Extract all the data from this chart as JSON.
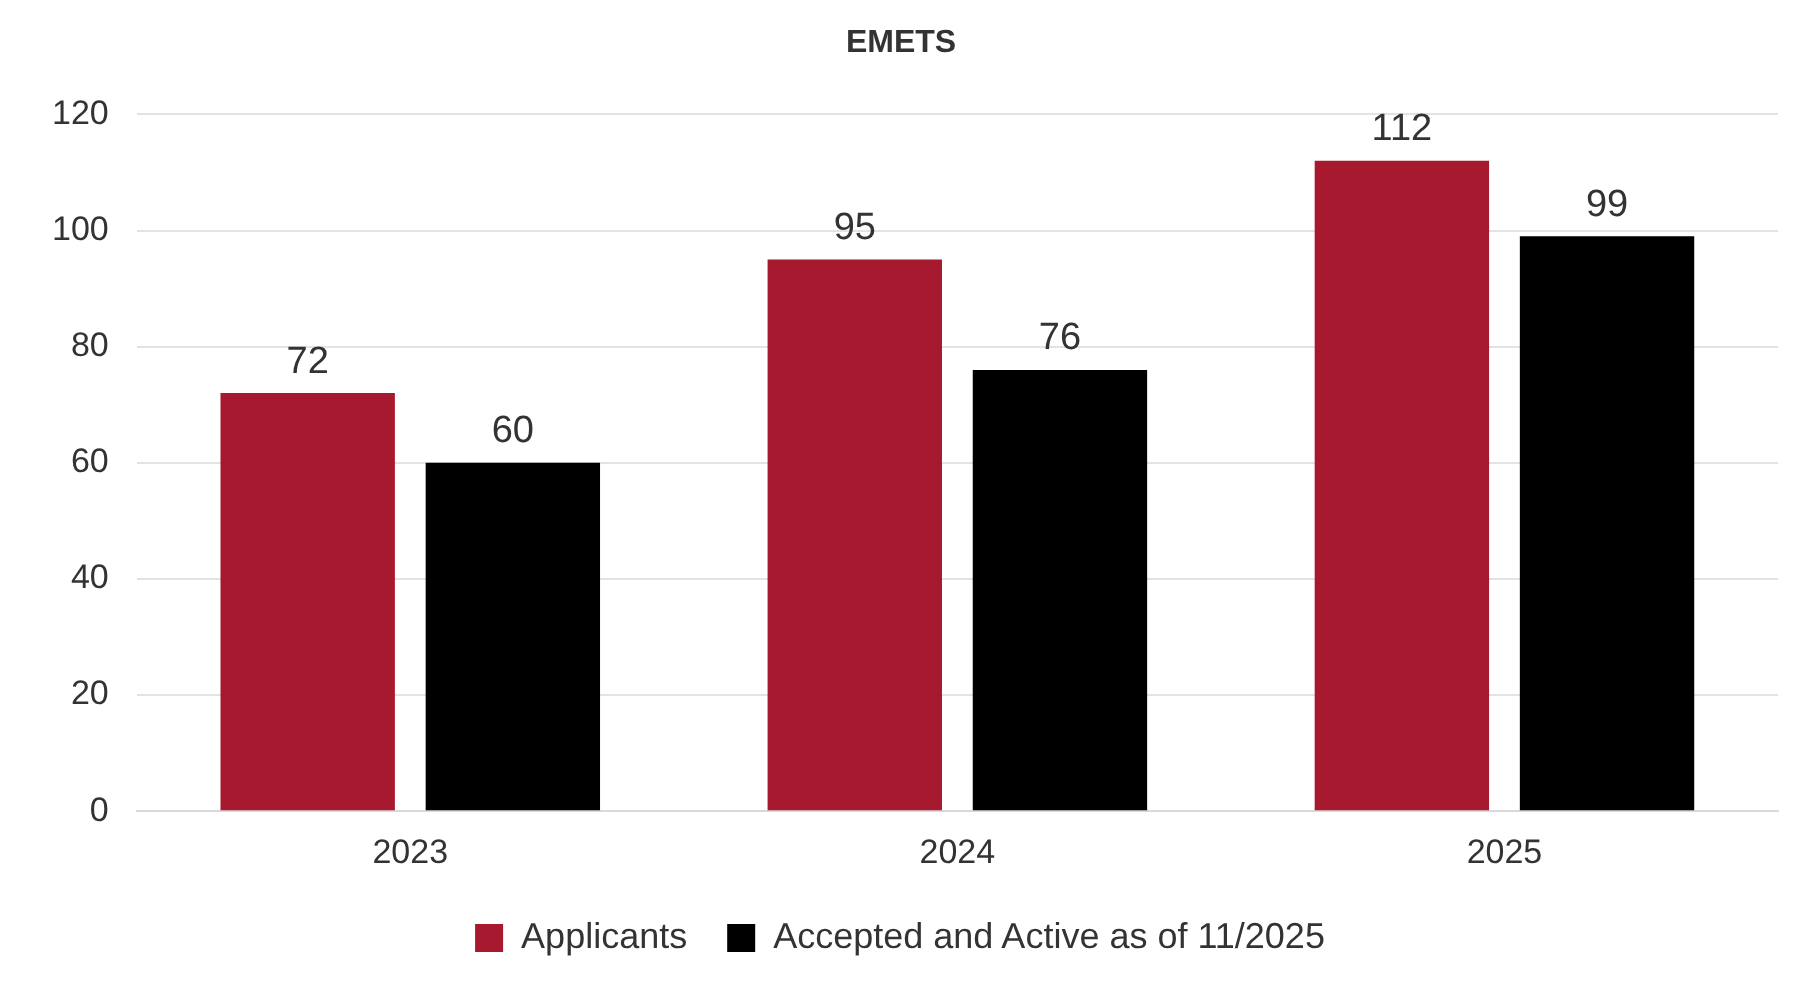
{
  "chart_data": {
    "type": "bar",
    "title": "EMETS",
    "categories": [
      "2023",
      "2024",
      "2025"
    ],
    "series": [
      {
        "name": "Applicants",
        "color": "#a6192e",
        "values": [
          72,
          95,
          112
        ]
      },
      {
        "name": "Accepted and Active as of 11/2025",
        "color": "#000000",
        "values": [
          60,
          76,
          99
        ]
      }
    ],
    "ylim": [
      0,
      120
    ],
    "yticks": [
      0,
      20,
      40,
      60,
      80,
      100,
      120
    ],
    "grid": "y",
    "legend": "bottom",
    "data_labels": true
  }
}
